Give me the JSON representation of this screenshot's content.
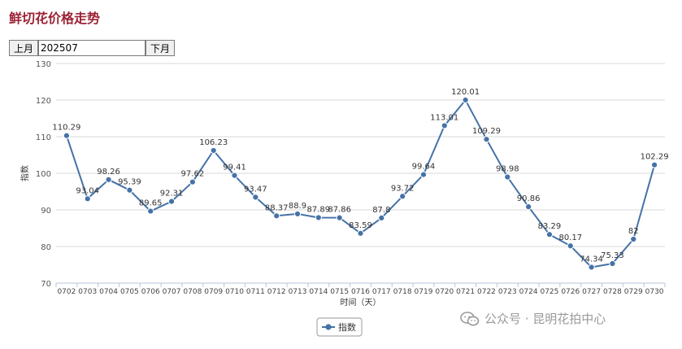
{
  "header": {
    "title": "鲜切花价格走势"
  },
  "controls": {
    "prev_label": "上月",
    "month_value": "202507",
    "next_label": "下月"
  },
  "chart_data": {
    "type": "line",
    "title": "",
    "xlabel": "时间（天）",
    "ylabel": "指数",
    "ylim": [
      70,
      130
    ],
    "yticks": [
      70,
      80,
      90,
      100,
      110,
      120,
      130
    ],
    "grid": true,
    "legend_position": "bottom-center",
    "categories": [
      "0702",
      "0703",
      "0704",
      "0705",
      "0706",
      "0707",
      "0708",
      "0709",
      "0710",
      "0711",
      "0712",
      "0713",
      "0714",
      "0715",
      "0716",
      "0717",
      "0718",
      "0719",
      "0720",
      "0721",
      "0722",
      "0723",
      "0724",
      "0725",
      "0726",
      "0727",
      "0728",
      "0729",
      "0730"
    ],
    "series": [
      {
        "name": "指数",
        "color": "#4572a7",
        "values": [
          110.29,
          93.04,
          98.26,
          95.39,
          89.65,
          92.31,
          97.62,
          106.23,
          99.41,
          93.47,
          88.37,
          88.9,
          87.89,
          87.86,
          83.59,
          87.8,
          93.72,
          99.64,
          113.01,
          120.01,
          109.29,
          98.98,
          90.86,
          83.29,
          80.17,
          74.34,
          75.33,
          82,
          102.29
        ],
        "labels": [
          "110.29",
          "93.04",
          "98.26",
          "95.39",
          "89.65",
          "92.31",
          "97.62",
          "106.23",
          "99.41",
          "93.47",
          "88.37",
          "88.9",
          "87.89",
          "87.86",
          "83.59",
          "87.8",
          "93.72",
          "99.64",
          "113.01",
          "120.01",
          "109.29",
          "98.98",
          "90.86",
          "83.29",
          "80.17",
          "74.34",
          "75.33",
          "82",
          "102.29"
        ]
      }
    ]
  },
  "watermark": {
    "text": "公众号 · 昆明花拍中心",
    "icon": "wechat-icon"
  }
}
